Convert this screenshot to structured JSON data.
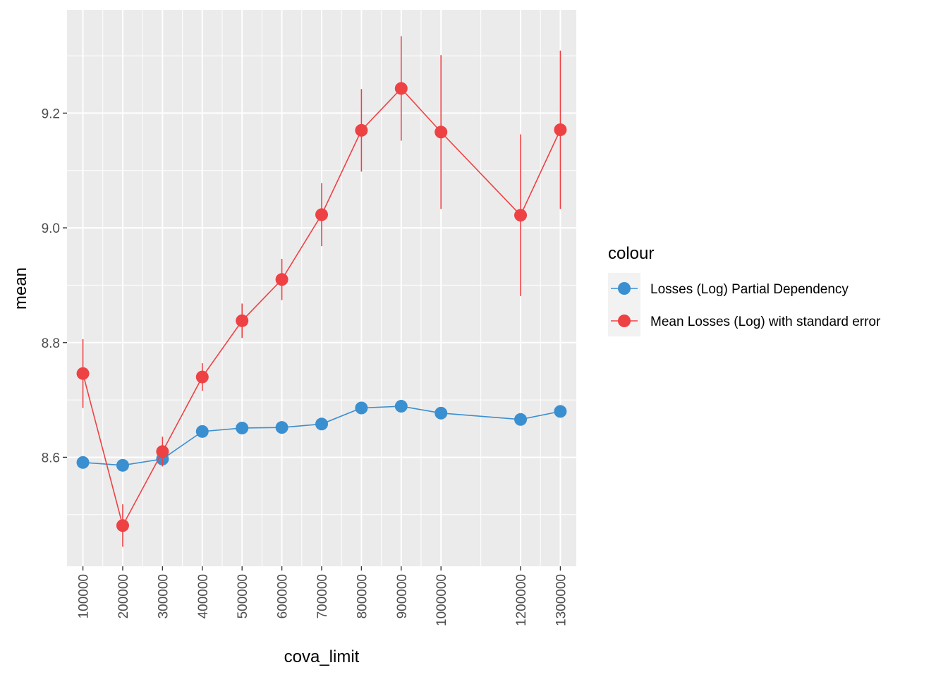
{
  "chart_data": {
    "type": "line",
    "xlabel": "cova_limit",
    "ylabel": "mean",
    "x_ticks": [
      "100000",
      "200000",
      "300000",
      "400000",
      "500000",
      "600000",
      "700000",
      "800000",
      "900000",
      "1000000",
      "1200000",
      "1300000"
    ],
    "y_ticks": [
      "8.6",
      "8.8",
      "9.0",
      "9.2"
    ],
    "xlim": [
      60000,
      1340000
    ],
    "ylim": [
      8.41,
      9.38
    ],
    "grid": true,
    "legend": {
      "title": "colour",
      "position": "right"
    },
    "series": [
      {
        "name": "Losses (Log) Partial Dependency",
        "color": "#3a8fd0",
        "x": [
          100000,
          200000,
          300000,
          400000,
          500000,
          600000,
          700000,
          800000,
          900000,
          1000000,
          1200000,
          1300000
        ],
        "y": [
          8.591,
          8.586,
          8.597,
          8.645,
          8.651,
          8.652,
          8.658,
          8.686,
          8.689,
          8.677,
          8.666,
          8.68
        ]
      },
      {
        "name": "Mean Losses (Log) with standard error",
        "color": "#ee4144",
        "x": [
          100000,
          200000,
          300000,
          400000,
          500000,
          600000,
          700000,
          800000,
          900000,
          1000000,
          1200000,
          1300000
        ],
        "y": [
          8.746,
          8.481,
          8.61,
          8.74,
          8.838,
          8.91,
          9.023,
          9.17,
          9.243,
          9.167,
          9.022,
          9.171
        ],
        "ymin": [
          8.686,
          8.444,
          8.584,
          8.716,
          8.808,
          8.874,
          8.968,
          9.098,
          9.152,
          9.033,
          8.881,
          9.033
        ],
        "ymax": [
          8.806,
          8.518,
          8.636,
          8.764,
          8.868,
          8.946,
          9.078,
          9.242,
          9.334,
          9.301,
          9.163,
          9.309
        ]
      }
    ]
  }
}
